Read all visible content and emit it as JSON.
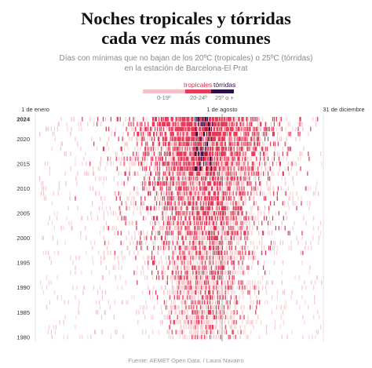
{
  "header": {
    "title_line1": "Noches tropicales y tórridas",
    "title_line2": "cada vez más comunes",
    "subtitle_line1": "Días con mínimas que no bajan de los 20ºC (tropicales) o 25ºC (tórridas)",
    "subtitle_line2": "en la estación de Barcelona-El Prat"
  },
  "legend": {
    "tropical_label": "tropicales",
    "torrid_label": "tórridas",
    "bins": [
      "0-19º",
      "20-24º",
      "25º o +"
    ],
    "colors": {
      "low": "#f6c1c6",
      "mid": "#e33d5b",
      "high": "#2a0f4a",
      "tropical_text": "#d8334f",
      "torrid_text": "#2a0f4a"
    }
  },
  "chart_data": {
    "type": "heatmap",
    "title": "Noches tropicales y tórridas cada vez más comunes",
    "x_axis": {
      "start": "1 de enero",
      "mid": "1 de agosto",
      "end": "31 de diciembre",
      "unit": "día del año",
      "range": [
        1,
        365
      ]
    },
    "y_axis": {
      "start_year": 1980,
      "end_year": 2024,
      "tick_labels": [
        "2024",
        "2020",
        "2015",
        "2010",
        "2005",
        "2000",
        "1995",
        "1990",
        "1985",
        "1980"
      ]
    },
    "bins": [
      {
        "label": "0-19º",
        "color": "#f6c1c6"
      },
      {
        "label": "20-24º",
        "color": "#e33d5b"
      },
      {
        "label": "25º o +",
        "color": "#2a0f4a"
      }
    ],
    "season_peak_day": 213
  },
  "footer": {
    "source": "Fuente: AEMET Open Data. / Laura Navarro"
  }
}
